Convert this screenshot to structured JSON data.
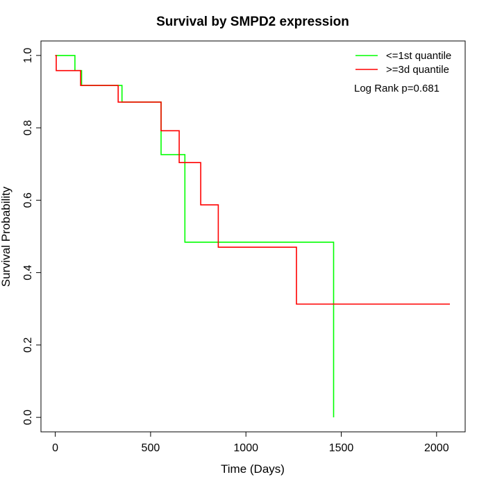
{
  "chart_data": {
    "type": "line",
    "title": "Survival by SMPD2 expression",
    "xlabel": "Time (Days)",
    "ylabel": "Survival Probability",
    "xlim": [
      -75,
      2150
    ],
    "ylim": [
      -0.04,
      1.04
    ],
    "xticks": [
      0,
      500,
      1000,
      1500,
      2000
    ],
    "xtick_labels": [
      "0",
      "500",
      "1000",
      "1500",
      "2000"
    ],
    "yticks": [
      0.0,
      0.2,
      0.4,
      0.6,
      0.8,
      1.0
    ],
    "ytick_labels": [
      "0.0",
      "0.2",
      "0.4",
      "0.6",
      "0.8",
      "1.0"
    ],
    "grid": false,
    "legend_position": "top-right",
    "annotation": "Log Rank p=0.681",
    "series": [
      {
        "name": "<=1st quantile",
        "color": "#00ff00",
        "step": true,
        "points": [
          [
            0,
            1.0
          ],
          [
            103,
            1.0
          ],
          [
            103,
            0.958
          ],
          [
            138,
            0.958
          ],
          [
            138,
            0.917
          ],
          [
            350,
            0.917
          ],
          [
            350,
            0.871
          ],
          [
            555,
            0.871
          ],
          [
            555,
            0.726
          ],
          [
            680,
            0.726
          ],
          [
            680,
            0.484
          ],
          [
            1460,
            0.484
          ],
          [
            1460,
            0.0
          ]
        ]
      },
      {
        "name": ">=3d quantile",
        "color": "#ff0000",
        "step": true,
        "points": [
          [
            0,
            1.0
          ],
          [
            5,
            1.0
          ],
          [
            5,
            0.958
          ],
          [
            133,
            0.958
          ],
          [
            133,
            0.917
          ],
          [
            330,
            0.917
          ],
          [
            330,
            0.871
          ],
          [
            555,
            0.871
          ],
          [
            555,
            0.792
          ],
          [
            650,
            0.792
          ],
          [
            650,
            0.704
          ],
          [
            763,
            0.704
          ],
          [
            763,
            0.587
          ],
          [
            855,
            0.587
          ],
          [
            855,
            0.47
          ],
          [
            1265,
            0.47
          ],
          [
            1265,
            0.313
          ],
          [
            2070,
            0.313
          ]
        ]
      }
    ]
  }
}
